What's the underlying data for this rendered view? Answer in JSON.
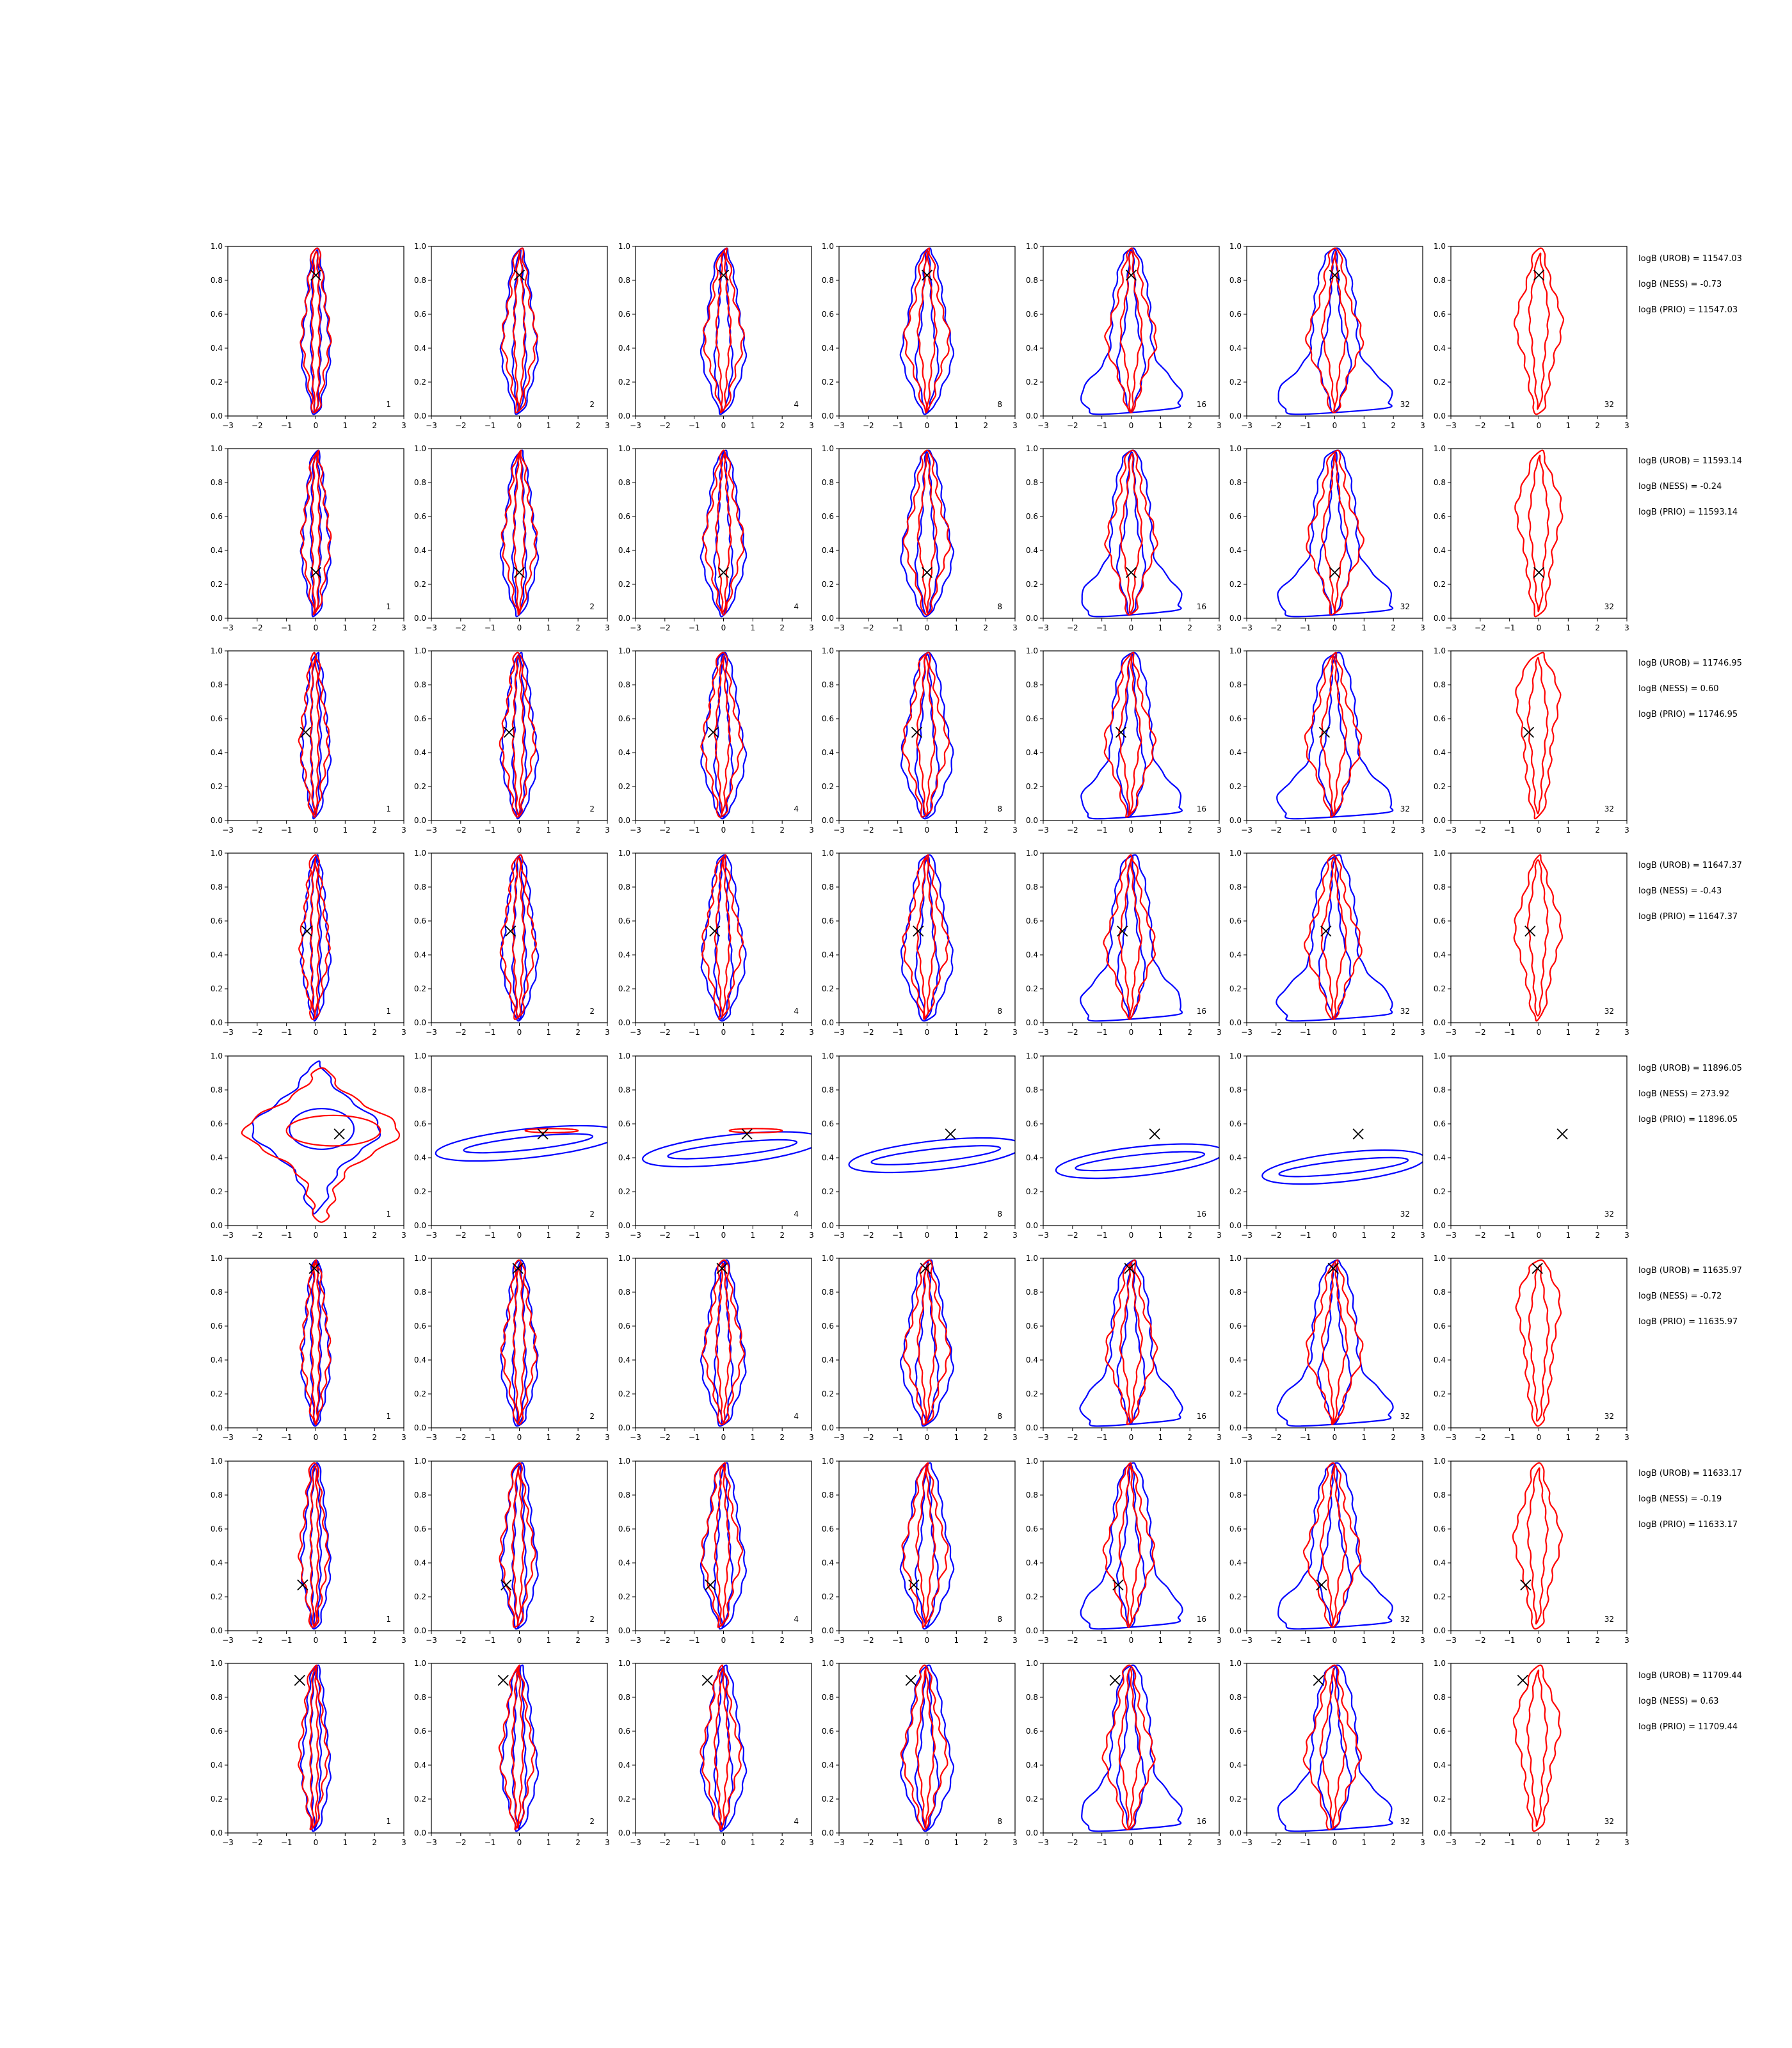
{
  "colors": {
    "blue": "#0000ff",
    "red": "#ff0000",
    "marker": "#000000",
    "axes": "#000000"
  },
  "chart_data": {
    "type": "contour",
    "layout": "8 rows x 7 panels",
    "xlim": [
      -3,
      3
    ],
    "ylim": [
      0,
      1
    ],
    "xticks": [
      "−3",
      "−2",
      "−1",
      "0",
      "1",
      "2",
      "3"
    ],
    "yticks": [
      "0.0",
      "0.2",
      "0.4",
      "0.6",
      "0.8",
      "1.0"
    ],
    "panel_labels": [
      "1",
      "2",
      "4",
      "8",
      "16",
      "32",
      "32"
    ],
    "series_colors": {
      "blue": "#0000ff",
      "red": "#ff0000"
    },
    "rows": [
      {
        "marker": [
          0.0,
          0.83
        ],
        "stats": [
          "logB (UROB) = 11547.03",
          "logB (NESS) = -0.73",
          "logB (PRIO) = 11547.03"
        ]
      },
      {
        "marker": [
          0.0,
          0.27
        ],
        "stats": [
          "logB (UROB) = 11593.14",
          "logB (NESS) = -0.24",
          "logB (PRIO) = 11593.14"
        ]
      },
      {
        "marker": [
          -0.35,
          0.52
        ],
        "stats": [
          "logB (UROB) = 11746.95",
          "logB (NESS) = 0.60",
          "logB (PRIO) = 11746.95"
        ]
      },
      {
        "marker": [
          -0.3,
          0.54
        ],
        "stats": [
          "logB (UROB) = 11647.37",
          "logB (NESS) = -0.43",
          "logB (PRIO) = 11647.37"
        ]
      },
      {
        "marker": [
          0.8,
          0.54
        ],
        "stats": [
          "logB (UROB) = 11896.05",
          "logB (NESS) = 273.92",
          "logB (PRIO) = 11896.05"
        ]
      },
      {
        "marker": [
          -0.05,
          0.94
        ],
        "stats": [
          "logB (UROB) = 11635.97",
          "logB (NESS) = -0.72",
          "logB (PRIO) = 11635.97"
        ]
      },
      {
        "marker": [
          -0.45,
          0.27
        ],
        "stats": [
          "logB (UROB) = 11633.17",
          "logB (NESS) = -0.19",
          "logB (PRIO) = 11633.17"
        ]
      },
      {
        "marker": [
          -0.55,
          0.9
        ],
        "stats": [
          "logB (UROB) = 11709.44",
          "logB (NESS) = 0.63",
          "logB (PRIO) = 11709.44"
        ]
      }
    ]
  }
}
